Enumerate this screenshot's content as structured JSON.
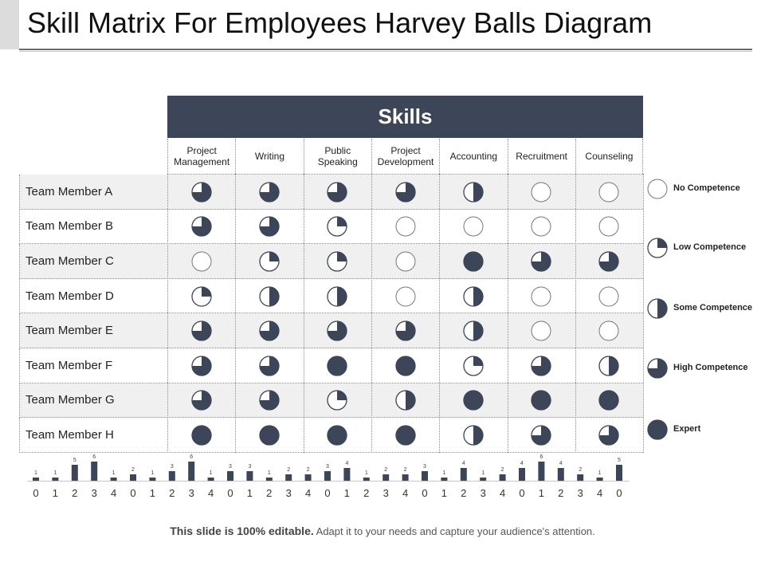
{
  "title": "Skill Matrix For Employees Harvey Balls Diagram",
  "header": "Skills",
  "colors": {
    "ball": "#3d4558",
    "header_bg": "#3d4558",
    "shade": "#f0f0f0"
  },
  "skills": [
    "Project Management",
    "Writing",
    "Public Speaking",
    "Project Development",
    "Accounting",
    "Recruitment",
    "Counseling"
  ],
  "members": [
    {
      "name": "Team Member A",
      "levels": [
        3,
        3,
        3,
        3,
        2,
        0,
        0
      ]
    },
    {
      "name": "Team Member B",
      "levels": [
        3,
        3,
        1,
        0,
        0,
        0,
        0
      ]
    },
    {
      "name": "Team Member C",
      "levels": [
        0,
        1,
        1,
        0,
        4,
        3,
        3
      ]
    },
    {
      "name": "Team Member D",
      "levels": [
        1,
        2,
        2,
        0,
        2,
        0,
        0
      ]
    },
    {
      "name": "Team Member E",
      "levels": [
        3,
        3,
        3,
        3,
        2,
        0,
        0
      ]
    },
    {
      "name": "Team Member F",
      "levels": [
        3,
        3,
        4,
        4,
        1,
        3,
        2
      ]
    },
    {
      "name": "Team Member G",
      "levels": [
        3,
        3,
        1,
        2,
        4,
        4,
        4
      ]
    },
    {
      "name": "Team Member H",
      "levels": [
        4,
        4,
        4,
        4,
        2,
        3,
        3
      ]
    }
  ],
  "legend": [
    {
      "label": "No Competence",
      "level": 0
    },
    {
      "label": "Low Competence",
      "level": 1
    },
    {
      "label": "Some Competence",
      "level": 2
    },
    {
      "label": "High Competence",
      "level": 3
    },
    {
      "label": "Expert",
      "level": 4
    }
  ],
  "chart_data": {
    "type": "bar",
    "categories": [
      "0",
      "1",
      "2",
      "3",
      "4",
      "0",
      "1",
      "2",
      "3",
      "4",
      "0",
      "1",
      "2",
      "3",
      "4",
      "0",
      "1",
      "2",
      "3",
      "4",
      "0",
      "1",
      "2",
      "3",
      "4",
      "0",
      "1",
      "2",
      "3",
      "4",
      "0"
    ],
    "values": [
      1,
      1,
      5,
      6,
      1,
      2,
      1,
      3,
      6,
      1,
      3,
      3,
      1,
      2,
      2,
      3,
      4,
      1,
      2,
      2,
      3,
      1,
      4,
      1,
      2,
      4,
      6,
      4,
      2,
      1,
      5
    ],
    "ylim": [
      0,
      6
    ]
  },
  "footer": {
    "bold": "This slide is 100% editable.",
    "normal": " Adapt it to your needs and capture your audience's attention."
  }
}
